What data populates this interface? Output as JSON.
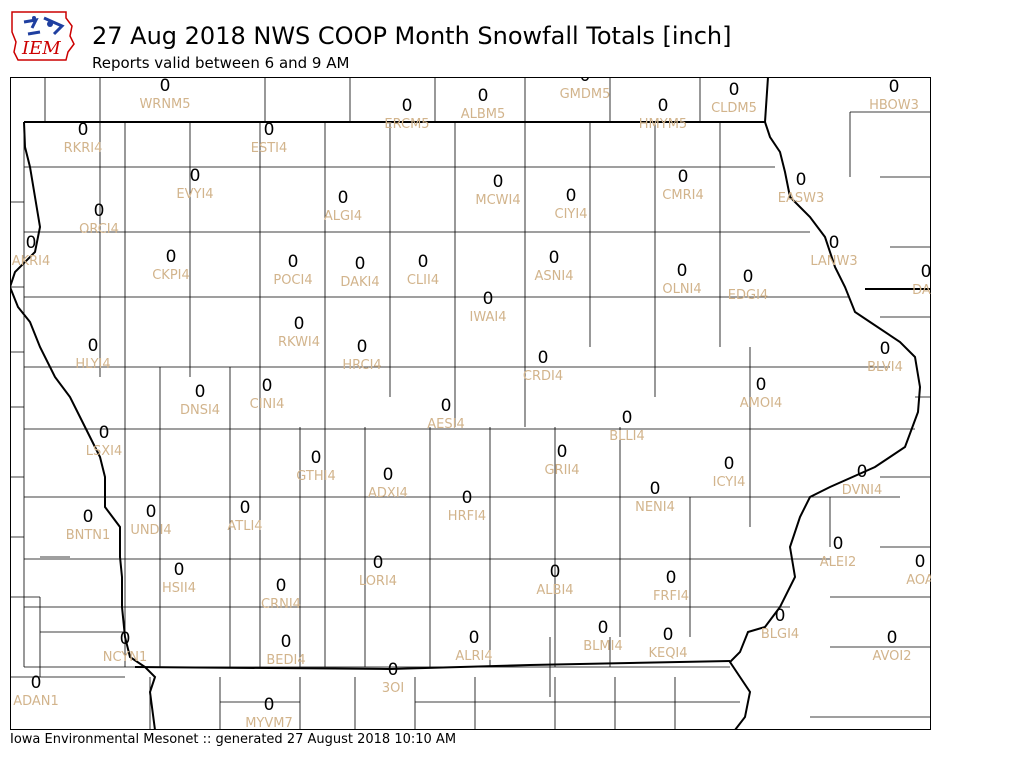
{
  "header": {
    "title": "27 Aug 2018 NWS COOP Month Snowfall Totals [inch]",
    "subtitle": "Reports valid between 6 and 9 AM"
  },
  "logo": {
    "text": "IEM"
  },
  "footer": {
    "text": "Iowa Environmental Mesonet :: generated 27 August 2018 10:10 AM"
  },
  "colors": {
    "value": "#000000",
    "station": "#d2b48c",
    "logo_red": "#cc0000",
    "logo_blue": "#1f3fa0"
  },
  "stations": [
    {
      "id": "WRNM5",
      "value": "0"
    },
    {
      "id": "GMDM5",
      "value": "0"
    },
    {
      "id": "ERCM5",
      "value": "0"
    },
    {
      "id": "ALBM5",
      "value": "0"
    },
    {
      "id": "HMYM5",
      "value": "0"
    },
    {
      "id": "CLDM5",
      "value": "0"
    },
    {
      "id": "HBOW3",
      "value": "0"
    },
    {
      "id": "RKRI4",
      "value": "0"
    },
    {
      "id": "ESTI4",
      "value": "0"
    },
    {
      "id": "EVYI4",
      "value": "0"
    },
    {
      "id": "ALGI4",
      "value": "0"
    },
    {
      "id": "MCWI4",
      "value": "0"
    },
    {
      "id": "CIYI4",
      "value": "0"
    },
    {
      "id": "CMRI4",
      "value": "0"
    },
    {
      "id": "EASW3",
      "value": "0"
    },
    {
      "id": "ORCI4",
      "value": "0"
    },
    {
      "id": "AKRI4",
      "value": "0"
    },
    {
      "id": "CKPI4",
      "value": "0"
    },
    {
      "id": "POCI4",
      "value": "0"
    },
    {
      "id": "DAKI4",
      "value": "0"
    },
    {
      "id": "CLII4",
      "value": "0"
    },
    {
      "id": "ASNI4",
      "value": "0"
    },
    {
      "id": "LANW3",
      "value": "0"
    },
    {
      "id": "OLNI4",
      "value": "0"
    },
    {
      "id": "EDGI4",
      "value": "0"
    },
    {
      "id": "DAR",
      "value": "0"
    },
    {
      "id": "IWAI4",
      "value": "0"
    },
    {
      "id": "RKWI4",
      "value": "0"
    },
    {
      "id": "HLYI4",
      "value": "0"
    },
    {
      "id": "HRCI4",
      "value": "0"
    },
    {
      "id": "CRDI4",
      "value": "0"
    },
    {
      "id": "BLVI4",
      "value": "0"
    },
    {
      "id": "DNSI4",
      "value": "0"
    },
    {
      "id": "CINI4",
      "value": "0"
    },
    {
      "id": "AMOI4",
      "value": "0"
    },
    {
      "id": "AESI4",
      "value": "0"
    },
    {
      "id": "BLLI4",
      "value": "0"
    },
    {
      "id": "LSXI4",
      "value": "0"
    },
    {
      "id": "GTHI4",
      "value": "0"
    },
    {
      "id": "ADXI4",
      "value": "0"
    },
    {
      "id": "GRII4",
      "value": "0"
    },
    {
      "id": "ICYI4",
      "value": "0"
    },
    {
      "id": "DVNI4",
      "value": "0"
    },
    {
      "id": "ATLI4",
      "value": "0"
    },
    {
      "id": "HRFI4",
      "value": "0"
    },
    {
      "id": "NENI4",
      "value": "0"
    },
    {
      "id": "UNDI4",
      "value": "0"
    },
    {
      "id": "BNTN1",
      "value": "0"
    },
    {
      "id": "ALEI2",
      "value": "0"
    },
    {
      "id": "HSII4",
      "value": "0"
    },
    {
      "id": "LORI4",
      "value": "0"
    },
    {
      "id": "ALBI4",
      "value": "0"
    },
    {
      "id": "FRFI4",
      "value": "0"
    },
    {
      "id": "AOA",
      "value": "0"
    },
    {
      "id": "CRNI4",
      "value": "0"
    },
    {
      "id": "NCYN1",
      "value": "0"
    },
    {
      "id": "BEDI4",
      "value": "0"
    },
    {
      "id": "ALRI4",
      "value": "0"
    },
    {
      "id": "BLMI4",
      "value": "0"
    },
    {
      "id": "KEQI4",
      "value": "0"
    },
    {
      "id": "BLGI4",
      "value": "0"
    },
    {
      "id": "AVOI2",
      "value": "0"
    },
    {
      "id": "3OI",
      "value": "0"
    },
    {
      "id": "ADAN1",
      "value": "0"
    },
    {
      "id": "MYVM7",
      "value": "0"
    }
  ]
}
